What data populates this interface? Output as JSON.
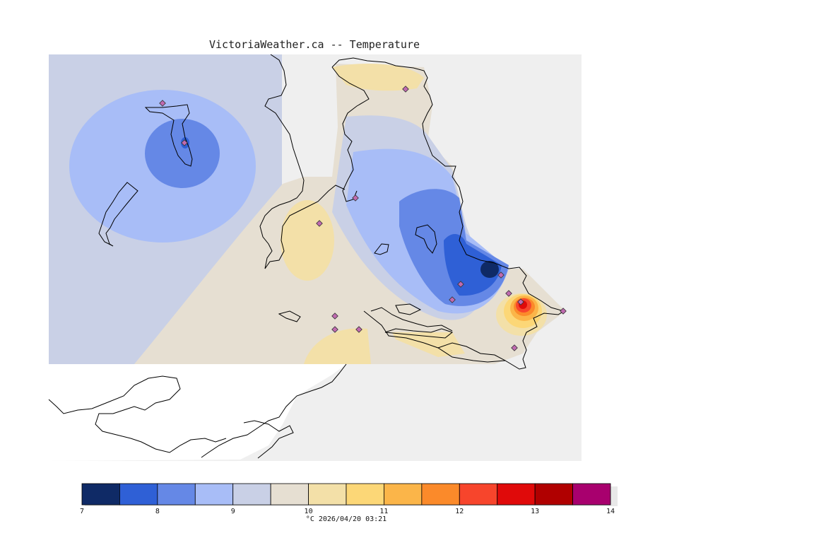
{
  "title": "VictoriaWeather.ca -- Temperature",
  "legend": {
    "unit_caption": "°C  2026/04/20 03:21",
    "tick_labels": [
      "7",
      "8",
      "9",
      "10",
      "11",
      "12",
      "13",
      "14"
    ],
    "bins": [
      {
        "from": 7.0,
        "to": 7.5,
        "color": "#0f2a66"
      },
      {
        "from": 7.5,
        "to": 8.0,
        "color": "#2f60d6"
      },
      {
        "from": 8.0,
        "to": 8.5,
        "color": "#6588e6"
      },
      {
        "from": 8.5,
        "to": 9.0,
        "color": "#a8bdf7"
      },
      {
        "from": 9.0,
        "to": 9.5,
        "color": "#c9d0e6"
      },
      {
        "from": 9.5,
        "to": 10.0,
        "color": "#e6dfd2"
      },
      {
        "from": 10.0,
        "to": 10.5,
        "color": "#f3e0a8"
      },
      {
        "from": 10.5,
        "to": 11.0,
        "color": "#fcd777"
      },
      {
        "from": 11.0,
        "to": 11.5,
        "color": "#fbb549"
      },
      {
        "from": 11.5,
        "to": 12.0,
        "color": "#fb8a2a"
      },
      {
        "from": 12.0,
        "to": 12.5,
        "color": "#f7452c"
      },
      {
        "from": 12.5,
        "to": 13.0,
        "color": "#e00a0a"
      },
      {
        "from": 13.0,
        "to": 13.5,
        "color": "#b00000"
      },
      {
        "from": 13.5,
        "to": 14.0,
        "color": "#a8006e"
      }
    ]
  },
  "map": {
    "background_color": "#efefef",
    "station_marker_color": "#c06ab0",
    "station_count": 14
  }
}
